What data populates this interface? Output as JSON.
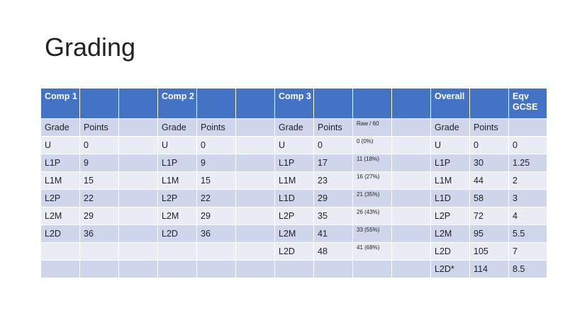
{
  "title": "Grading",
  "header": [
    "Comp 1",
    "",
    "",
    "Comp 2",
    "",
    "",
    "Comp 3",
    "",
    "",
    "",
    "Overall",
    "",
    "Eqv GCSE"
  ],
  "rows": [
    [
      "Grade",
      "Points",
      "",
      "Grade",
      "Points",
      "",
      "Grade",
      "Points",
      "Raw / 60",
      "",
      "Grade",
      "Points",
      ""
    ],
    [
      "U",
      "0",
      "",
      "U",
      "0",
      "",
      "U",
      "0",
      "0 (0%)",
      "",
      "U",
      "0",
      "0"
    ],
    [
      "L1P",
      "9",
      "",
      "L1P",
      "9",
      "",
      "L1P",
      "17",
      "11 (18%)",
      "",
      "L1P",
      "30",
      "1.25"
    ],
    [
      "L1M",
      "15",
      "",
      "L1M",
      "15",
      "",
      "L1M",
      "23",
      "16 (27%)",
      "",
      "L1M",
      "44",
      "2"
    ],
    [
      "L2P",
      "22",
      "",
      "L2P",
      "22",
      "",
      "L1D",
      "29",
      "21 (35%)",
      "",
      "L1D",
      "58",
      "3"
    ],
    [
      "L2M",
      "29",
      "",
      "L2M",
      "29",
      "",
      "L2P",
      "35",
      "26 (43%)",
      "",
      "L2P",
      "72",
      "4"
    ],
    [
      "L2D",
      "36",
      "",
      "L2D",
      "36",
      "",
      "L2M",
      "41",
      "33 (55%)",
      "",
      "L2M",
      "95",
      "5.5"
    ],
    [
      "",
      "",
      "",
      "",
      "",
      "",
      "L2D",
      "48",
      "41 (68%)",
      "",
      "L2D",
      "105",
      "7"
    ],
    [
      "",
      "",
      "",
      "",
      "",
      "",
      "",
      "",
      "",
      "",
      "L2D*",
      "114",
      "8.5"
    ]
  ]
}
